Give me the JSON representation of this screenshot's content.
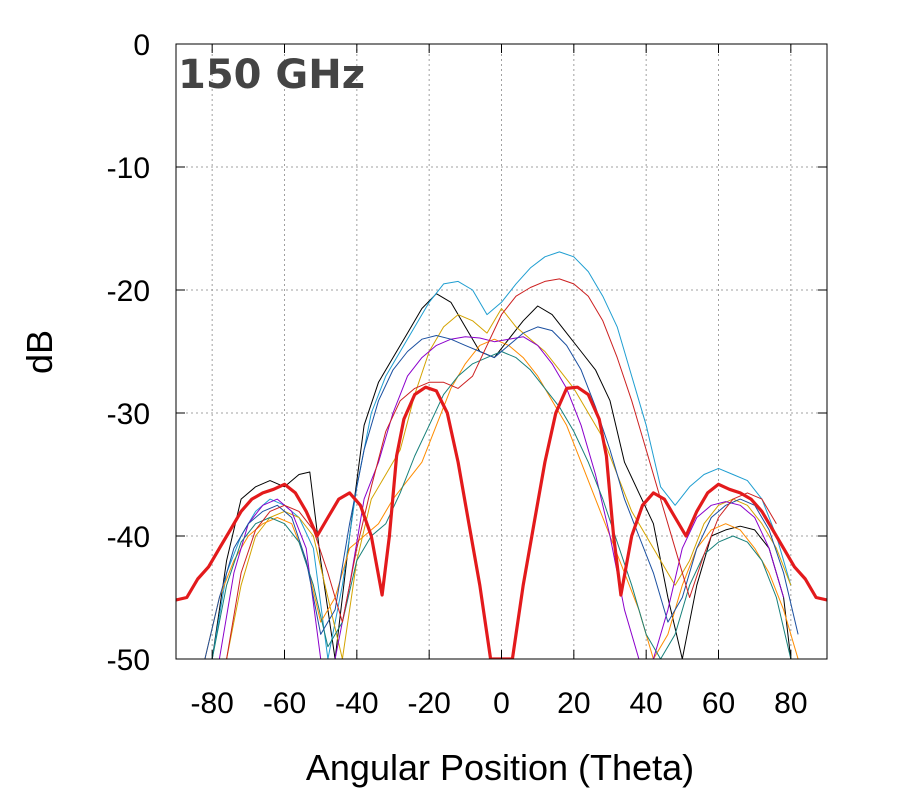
{
  "chart_data": {
    "type": "line",
    "title": "150 GHz",
    "xlabel": "Angular Position (Theta)",
    "ylabel": "dB",
    "xlim": [
      -90,
      90
    ],
    "ylim": [
      -50,
      0
    ],
    "xticks": [
      -80,
      -60,
      -40,
      -20,
      0,
      20,
      40,
      60,
      80
    ],
    "yticks": [
      0,
      -10,
      -20,
      -30,
      -40,
      -50
    ],
    "grid": true,
    "legend": "none",
    "series": [
      {
        "color": "#e31a1c",
        "emphasis": "bold",
        "x": [
          -90,
          -87,
          -84,
          -81,
          -78,
          -75,
          -72,
          -69,
          -66,
          -63,
          -60,
          -57,
          -54,
          -51,
          -48,
          -45,
          -42,
          -39,
          -36,
          -33,
          -31,
          -29,
          -27,
          -24,
          -21,
          -18,
          -15,
          -12,
          -9,
          -6,
          -4,
          -3,
          -2,
          2,
          3,
          4,
          6,
          9,
          12,
          15,
          18,
          21,
          24,
          27,
          29,
          31,
          33,
          36,
          39,
          42,
          45,
          48,
          51,
          54,
          57,
          60,
          63,
          66,
          69,
          72,
          75,
          78,
          81,
          84,
          87,
          90
        ],
        "y": [
          -45.2,
          -45.0,
          -43.5,
          -42.5,
          -41.0,
          -39.5,
          -38.0,
          -37.0,
          -36.5,
          -36.2,
          -35.8,
          -36.5,
          -38.0,
          -40.0,
          -38.5,
          -37.0,
          -36.5,
          -37.5,
          -40.0,
          -44.8,
          -40.0,
          -33.5,
          -30.5,
          -28.5,
          -27.9,
          -28.2,
          -30.0,
          -34.0,
          -39.0,
          -44.0,
          -48.0,
          -50.0,
          -50.0,
          -50.0,
          -50.0,
          -48.0,
          -44.0,
          -39.0,
          -34.0,
          -30.0,
          -28.0,
          -27.9,
          -28.5,
          -30.5,
          -33.5,
          -40.0,
          -44.8,
          -40.0,
          -37.5,
          -36.5,
          -37.0,
          -38.5,
          -40.0,
          -38.0,
          -36.5,
          -35.8,
          -36.2,
          -36.5,
          -37.0,
          -38.0,
          -39.5,
          -41.0,
          -42.5,
          -43.5,
          -45.0,
          -45.2
        ]
      },
      {
        "color": "#000000",
        "x": [
          -80,
          -76,
          -72,
          -68,
          -64,
          -60,
          -56,
          -53,
          -50,
          -46,
          -42,
          -38,
          -34,
          -30,
          -26,
          -22,
          -18,
          -14,
          -10,
          -6,
          -2,
          2,
          6,
          10,
          14,
          18,
          22,
          26,
          30,
          34,
          38,
          42,
          46,
          50,
          54,
          58,
          62,
          66,
          70,
          74,
          78,
          80
        ],
        "y": [
          -50,
          -42,
          -37,
          -36,
          -35.5,
          -36,
          -35,
          -34.8,
          -42,
          -50,
          -40,
          -31,
          -27.5,
          -25.5,
          -23.5,
          -21.5,
          -20.3,
          -21,
          -23,
          -25,
          -25.5,
          -24,
          -22.5,
          -21.3,
          -22,
          -23.5,
          -25,
          -26.5,
          -29,
          -34,
          -36.5,
          -39,
          -45,
          -50,
          -44,
          -40,
          -39.5,
          -39.2,
          -39.5,
          -41,
          -45,
          -50
        ]
      },
      {
        "color": "#1f9ed1",
        "x": [
          -80,
          -76,
          -72,
          -68,
          -64,
          -60,
          -56,
          -52,
          -48,
          -44,
          -40,
          -36,
          -32,
          -28,
          -24,
          -20,
          -16,
          -12,
          -8,
          -4,
          0,
          4,
          8,
          12,
          16,
          20,
          24,
          28,
          32,
          36,
          40,
          44,
          48,
          52,
          56,
          60,
          64,
          68,
          72,
          76,
          80
        ],
        "y": [
          -50,
          -43,
          -40,
          -38,
          -37,
          -37.5,
          -38.5,
          -41,
          -50,
          -44,
          -36,
          -30,
          -27,
          -25,
          -23,
          -21,
          -19.5,
          -19.3,
          -20,
          -22,
          -21,
          -19.5,
          -18.2,
          -17.3,
          -16.9,
          -17.3,
          -18.5,
          -20.5,
          -23,
          -27,
          -31,
          -36,
          -37.5,
          -36,
          -35,
          -34.5,
          -35,
          -35.5,
          -37,
          -40,
          -44
        ]
      },
      {
        "color": "#d4a300",
        "x": [
          -76,
          -72,
          -68,
          -64,
          -60,
          -56,
          -52,
          -48,
          -44,
          -40,
          -36,
          -32,
          -28,
          -24,
          -20,
          -16,
          -12,
          -8,
          -4,
          0,
          4,
          8,
          12,
          16,
          20,
          24,
          28,
          32,
          36,
          40,
          44,
          48,
          52,
          56,
          60,
          64,
          68,
          72,
          76,
          80
        ],
        "y": [
          -50,
          -44,
          -40,
          -38.5,
          -38,
          -38.5,
          -40,
          -45,
          -50,
          -42,
          -37,
          -35,
          -33,
          -28.5,
          -25,
          -23,
          -22,
          -22.5,
          -23.5,
          -21.5,
          -23,
          -24,
          -25,
          -26.5,
          -28,
          -30,
          -32,
          -35,
          -38,
          -40,
          -42,
          -44,
          -42,
          -39,
          -37.5,
          -37,
          -37.5,
          -39,
          -41,
          -44
        ]
      },
      {
        "color": "#ff8c00",
        "x": [
          -82,
          -78,
          -74,
          -70,
          -66,
          -62,
          -58,
          -54,
          -50,
          -46,
          -42,
          -38,
          -34,
          -30,
          -26,
          -22,
          -18,
          -14,
          -10,
          -6,
          -2,
          2,
          6,
          10,
          14,
          18,
          22,
          26,
          30,
          34,
          38,
          42,
          46,
          50,
          54,
          58,
          62,
          66,
          70,
          74,
          78,
          82
        ],
        "y": [
          -50,
          -45,
          -42,
          -40,
          -39,
          -38.5,
          -39,
          -42,
          -47,
          -45,
          -41,
          -40,
          -39,
          -37,
          -35.5,
          -34,
          -31,
          -28,
          -26,
          -24.5,
          -24,
          -24.5,
          -25.5,
          -27,
          -29,
          -31,
          -34,
          -37,
          -40,
          -43,
          -46,
          -50,
          -48,
          -44,
          -41,
          -39.5,
          -39,
          -39.5,
          -41,
          -43,
          -46,
          -50
        ]
      },
      {
        "color": "#8b00cc",
        "x": [
          -78,
          -74,
          -70,
          -66,
          -62,
          -58,
          -54,
          -50,
          -46,
          -42,
          -38,
          -34,
          -30,
          -26,
          -22,
          -18,
          -14,
          -10,
          -6,
          -2,
          2,
          6,
          10,
          14,
          18,
          22,
          26,
          30,
          34,
          38,
          42,
          46,
          50,
          54,
          58,
          62,
          66,
          70,
          74,
          78
        ],
        "y": [
          -50,
          -43,
          -39,
          -37.5,
          -37,
          -38,
          -41,
          -50,
          -50,
          -44,
          -37,
          -34,
          -30,
          -27,
          -25.5,
          -24.5,
          -24,
          -23.8,
          -23.9,
          -24.2,
          -24,
          -23.8,
          -24.5,
          -26,
          -28,
          -31,
          -35,
          -40,
          -46,
          -50,
          -50,
          -46,
          -41,
          -38.5,
          -37.5,
          -37.2,
          -37.5,
          -38.5,
          -41,
          -45
        ]
      },
      {
        "color": "#17807a",
        "x": [
          -80,
          -76,
          -72,
          -68,
          -64,
          -60,
          -56,
          -52,
          -48,
          -44,
          -40,
          -36,
          -32,
          -28,
          -24,
          -20,
          -16,
          -12,
          -8,
          -4,
          0,
          4,
          8,
          12,
          16,
          20,
          24,
          28,
          32,
          36,
          40,
          44,
          48,
          52,
          56,
          60,
          64,
          68,
          72,
          76,
          80
        ],
        "y": [
          -50,
          -44,
          -40.5,
          -39,
          -38.5,
          -39,
          -40.5,
          -44,
          -49,
          -47,
          -42,
          -40,
          -39,
          -36.5,
          -33.5,
          -31,
          -28.5,
          -27,
          -26,
          -25.5,
          -25,
          -25.5,
          -26.5,
          -28,
          -29.5,
          -31.5,
          -34,
          -37,
          -40.5,
          -44,
          -48,
          -50,
          -48,
          -44,
          -41.5,
          -40.5,
          -40,
          -40.5,
          -42,
          -45,
          -50
        ]
      },
      {
        "color": "#1a4fa0",
        "x": [
          -82,
          -78,
          -74,
          -70,
          -66,
          -62,
          -58,
          -54,
          -50,
          -46,
          -42,
          -38,
          -34,
          -30,
          -26,
          -22,
          -18,
          -14,
          -10,
          -6,
          -2,
          2,
          6,
          10,
          14,
          18,
          22,
          26,
          30,
          34,
          38,
          42,
          46,
          50,
          54,
          58,
          62,
          66,
          70,
          74,
          78,
          82
        ],
        "y": [
          -50,
          -45,
          -41,
          -39,
          -38,
          -37.5,
          -38.5,
          -42,
          -48,
          -46,
          -39,
          -33,
          -29,
          -26.5,
          -25,
          -24,
          -23.7,
          -24,
          -24.5,
          -25,
          -25.5,
          -24.5,
          -23.5,
          -23,
          -23.3,
          -24.5,
          -26.5,
          -29.5,
          -33,
          -37,
          -40,
          -43,
          -47,
          -45,
          -41,
          -38.5,
          -37.5,
          -37,
          -37.5,
          -39.5,
          -43,
          -48
        ]
      },
      {
        "color": "#cc2020",
        "x": [
          -76,
          -72,
          -68,
          -64,
          -60,
          -56,
          -52,
          -48,
          -44,
          -40,
          -36,
          -32,
          -28,
          -24,
          -20,
          -16,
          -12,
          -8,
          -4,
          0,
          4,
          8,
          12,
          16,
          20,
          24,
          28,
          32,
          36,
          40,
          44,
          48,
          52,
          56,
          60,
          64,
          68,
          72,
          76
        ],
        "y": [
          -50,
          -43,
          -39.5,
          -38,
          -37.5,
          -38,
          -39.5,
          -43,
          -47,
          -41,
          -36,
          -31.5,
          -29,
          -28,
          -27.5,
          -27.5,
          -28,
          -27,
          -24.5,
          -22,
          -20.5,
          -19.8,
          -19.3,
          -19.1,
          -19.5,
          -20.5,
          -22.5,
          -25.5,
          -29,
          -33,
          -37,
          -41,
          -45,
          -41.5,
          -38.5,
          -37,
          -36.5,
          -37,
          -39
        ]
      }
    ]
  }
}
